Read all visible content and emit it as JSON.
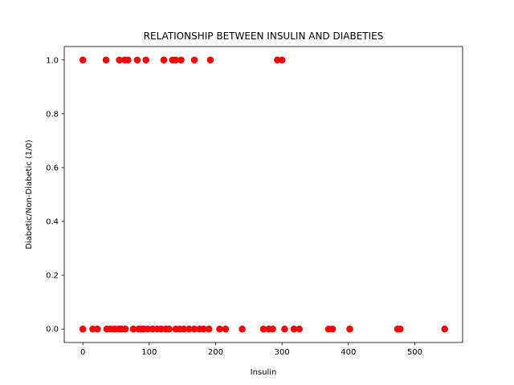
{
  "chart_data": {
    "type": "scatter",
    "title": "RELATIONSHIP BETWEEN INSULIN AND DIABETIES",
    "xlabel": "Insulin",
    "ylabel": "Diabetic/Non-Diabetic (1/0)",
    "xlim": [
      -28,
      572
    ],
    "ylim": [
      -0.05,
      1.05
    ],
    "xticks": [
      0,
      100,
      200,
      300,
      400,
      500
    ],
    "xtick_labels": [
      "0",
      "100",
      "200",
      "300",
      "400",
      "500"
    ],
    "yticks": [
      0.0,
      0.2,
      0.4,
      0.6,
      0.8,
      1.0
    ],
    "ytick_labels": [
      "0.0",
      "0.2",
      "0.4",
      "0.6",
      "0.8",
      "1.0"
    ],
    "grid": false,
    "marker_color": "#ff0000",
    "series": [
      {
        "name": "",
        "points": [
          [
            0,
            1
          ],
          [
            35,
            1
          ],
          [
            55,
            1
          ],
          [
            63,
            1
          ],
          [
            68,
            1
          ],
          [
            82,
            1
          ],
          [
            95,
            1
          ],
          [
            122,
            1
          ],
          [
            135,
            1
          ],
          [
            140,
            1
          ],
          [
            148,
            1
          ],
          [
            168,
            1
          ],
          [
            192,
            1
          ],
          [
            293,
            1
          ],
          [
            300,
            1
          ],
          [
            0,
            0
          ],
          [
            15,
            0
          ],
          [
            22,
            0
          ],
          [
            36,
            0
          ],
          [
            42,
            0
          ],
          [
            48,
            0
          ],
          [
            54,
            0
          ],
          [
            58,
            0
          ],
          [
            64,
            0
          ],
          [
            76,
            0
          ],
          [
            84,
            0
          ],
          [
            88,
            0
          ],
          [
            92,
            0
          ],
          [
            98,
            0
          ],
          [
            105,
            0
          ],
          [
            112,
            0
          ],
          [
            118,
            0
          ],
          [
            125,
            0
          ],
          [
            130,
            0
          ],
          [
            140,
            0
          ],
          [
            146,
            0
          ],
          [
            152,
            0
          ],
          [
            160,
            0
          ],
          [
            168,
            0
          ],
          [
            176,
            0
          ],
          [
            182,
            0
          ],
          [
            190,
            0
          ],
          [
            206,
            0
          ],
          [
            215,
            0
          ],
          [
            240,
            0
          ],
          [
            272,
            0
          ],
          [
            280,
            0
          ],
          [
            286,
            0
          ],
          [
            304,
            0
          ],
          [
            318,
            0
          ],
          [
            326,
            0
          ],
          [
            370,
            0
          ],
          [
            376,
            0
          ],
          [
            402,
            0
          ],
          [
            474,
            0
          ],
          [
            478,
            0
          ],
          [
            545,
            0
          ]
        ]
      }
    ]
  }
}
